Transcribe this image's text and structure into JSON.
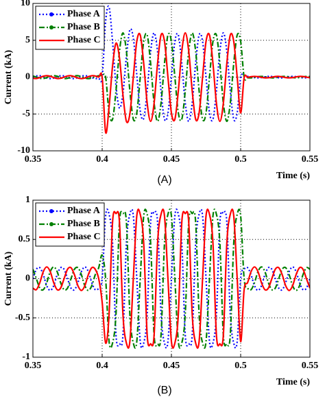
{
  "chart_data": [
    {
      "type": "line",
      "caption": "(A)",
      "xlabel": "Time (s)",
      "ylabel": "Current (kA)",
      "xlim": [
        0.35,
        0.55
      ],
      "ylim": [
        -10,
        10
      ],
      "xticks": [
        0.35,
        0.4,
        0.45,
        0.5,
        0.55
      ],
      "yticks": [
        -10,
        -5,
        0,
        5,
        10
      ],
      "grid": true,
      "legend": "upper left",
      "x": [
        0.35,
        0.3525,
        0.355,
        0.3575,
        0.36,
        0.3625,
        0.365,
        0.3675,
        0.37,
        0.3725,
        0.375,
        0.3775,
        0.38,
        0.3825,
        0.385,
        0.3875,
        0.39,
        0.3925,
        0.395,
        0.3975,
        0.4,
        0.4025,
        0.405,
        0.4075,
        0.41,
        0.4125,
        0.415,
        0.4175,
        0.42,
        0.4225,
        0.425,
        0.4275,
        0.43,
        0.4325,
        0.435,
        0.4375,
        0.44,
        0.4425,
        0.445,
        0.4475,
        0.45,
        0.4525,
        0.455,
        0.4575,
        0.46,
        0.4625,
        0.465,
        0.4675,
        0.47,
        0.4725,
        0.475,
        0.4775,
        0.48,
        0.4825,
        0.485,
        0.4875,
        0.49,
        0.4925,
        0.495,
        0.4975,
        0.5,
        0.5025,
        0.505,
        0.5075,
        0.51,
        0.5125,
        0.515,
        0.5175,
        0.52,
        0.5225,
        0.525,
        0.5275,
        0.53,
        0.5325,
        0.535,
        0.5375,
        0.54,
        0.5425,
        0.545,
        0.5475,
        0.55
      ],
      "series": [
        {
          "name": "Phase A",
          "color": "#0000ff",
          "style": "dotted",
          "values": [
            0,
            0.16,
            0.19,
            0.06,
            -0.12,
            -0.2,
            -0.12,
            0.06,
            0.19,
            0.16,
            0,
            -0.16,
            -0.19,
            -0.06,
            0.12,
            0.2,
            0.12,
            -0.06,
            -0.19,
            -0.16,
            0,
            7.6,
            9.5,
            4.8,
            -1.2,
            -4.2,
            -2.2,
            2.8,
            6.4,
            5.3,
            0.3,
            -4.6,
            -5.6,
            -1.8,
            3.5,
            6,
            3.5,
            -1.9,
            -5.7,
            -4.9,
            0,
            4.85,
            5.71,
            1.85,
            -3.53,
            -6,
            -3.53,
            1.85,
            5.71,
            4.85,
            0,
            -4.85,
            -5.71,
            -1.85,
            3.53,
            6,
            3.53,
            -1.85,
            -5.71,
            -4.85,
            0,
            0.08,
            0.1,
            0.03,
            -0.06,
            -0.1,
            -0.06,
            0.03,
            0.1,
            0.08,
            0,
            -0.08,
            -0.1,
            -0.03,
            0.06,
            0.1,
            0.06,
            -0.03,
            -0.1,
            -0.08,
            0
          ]
        },
        {
          "name": "Phase B",
          "color": "#008000",
          "style": "dashdot",
          "values": [
            0.16,
            0,
            -0.16,
            -0.19,
            -0.06,
            0.12,
            0.2,
            0.12,
            -0.06,
            -0.19,
            -0.16,
            0,
            0.16,
            0.19,
            0.06,
            -0.12,
            -0.2,
            -0.12,
            0.06,
            0.19,
            0.2,
            0,
            -4.85,
            -5.71,
            -1.85,
            3.53,
            6,
            3.53,
            -1.85,
            -5.71,
            -4.85,
            0,
            4.85,
            5.71,
            1.85,
            -3.53,
            -6,
            -3.53,
            1.85,
            5.71,
            4.85,
            0,
            -4.85,
            -5.71,
            -1.85,
            3.53,
            6,
            3.53,
            -1.85,
            -5.71,
            -4.85,
            0,
            4.85,
            5.71,
            1.85,
            -3.53,
            -6,
            -3.53,
            1.85,
            5.71,
            4.85,
            0,
            -0.08,
            -0.1,
            -0.03,
            0.06,
            0.1,
            0.06,
            -0.03,
            -0.1,
            -0.08,
            0,
            0.08,
            0.1,
            0.03,
            -0.06,
            -0.1,
            -0.06,
            0.03,
            0.1,
            0.08
          ]
        },
        {
          "name": "Phase C",
          "color": "#ff0000",
          "style": "solid",
          "values": [
            -0.16,
            -0.19,
            -0.06,
            0.12,
            0.2,
            0.12,
            -0.06,
            -0.19,
            -0.16,
            0,
            0.16,
            0.19,
            0.06,
            -0.12,
            -0.2,
            -0.12,
            0.06,
            0.19,
            0.16,
            0,
            0,
            -7.5,
            -4,
            1.5,
            4.6,
            2.6,
            -2.4,
            -6,
            -5,
            0,
            4.85,
            5.71,
            1.85,
            -3.53,
            -6,
            -3.53,
            1.85,
            5.71,
            4.85,
            0,
            -4.85,
            -5.71,
            -1.85,
            3.53,
            6,
            3.53,
            -1.85,
            -5.71,
            -4.85,
            0,
            4.85,
            5.71,
            1.85,
            -3.53,
            -6,
            -3.53,
            1.85,
            5.71,
            4.85,
            0,
            -4.85,
            -0.1,
            -0.03,
            0.06,
            0.1,
            0.06,
            -0.03,
            -0.1,
            -0.08,
            0,
            0.08,
            0.1,
            0.03,
            -0.06,
            -0.1,
            -0.06,
            0.03,
            0.1,
            0.08,
            0,
            -0.08
          ]
        }
      ]
    },
    {
      "type": "line",
      "caption": "(B)",
      "xlabel": "Time (s)",
      "ylabel": "Current (kA)",
      "xlim": [
        0.35,
        0.55
      ],
      "ylim": [
        -1,
        1
      ],
      "xticks": [
        0.35,
        0.4,
        0.45,
        0.5,
        0.55
      ],
      "yticks": [
        -1,
        -0.5,
        0,
        0.5,
        1
      ],
      "grid": true,
      "legend": "upper left",
      "x": [
        0.35,
        0.3525,
        0.355,
        0.3575,
        0.36,
        0.3625,
        0.365,
        0.3675,
        0.37,
        0.3725,
        0.375,
        0.3775,
        0.38,
        0.3825,
        0.385,
        0.3875,
        0.39,
        0.3925,
        0.395,
        0.3975,
        0.4,
        0.4025,
        0.405,
        0.4075,
        0.41,
        0.4125,
        0.415,
        0.4175,
        0.42,
        0.4225,
        0.425,
        0.4275,
        0.43,
        0.4325,
        0.435,
        0.4375,
        0.44,
        0.4425,
        0.445,
        0.4475,
        0.45,
        0.4525,
        0.455,
        0.4575,
        0.46,
        0.4625,
        0.465,
        0.4675,
        0.47,
        0.4725,
        0.475,
        0.4775,
        0.48,
        0.4825,
        0.485,
        0.4875,
        0.49,
        0.4925,
        0.495,
        0.4975,
        0.5,
        0.5025,
        0.505,
        0.5075,
        0.51,
        0.5125,
        0.515,
        0.5175,
        0.52,
        0.5225,
        0.525,
        0.5275,
        0.53,
        0.5325,
        0.535,
        0.5375,
        0.54,
        0.5425,
        0.545,
        0.5475,
        0.55
      ],
      "series": [
        {
          "name": "Phase A",
          "color": "#0000ff",
          "style": "dotted",
          "values": [
            0,
            0.12,
            0.14,
            0.05,
            -0.09,
            -0.15,
            -0.09,
            0.05,
            0.14,
            0.12,
            0,
            -0.12,
            -0.14,
            -0.05,
            0.09,
            0.15,
            0.09,
            -0.05,
            -0.14,
            -0.12,
            0,
            0.8,
            0.82,
            0.45,
            -0.72,
            -0.83,
            -0.72,
            0.45,
            0.82,
            0.8,
            0,
            -0.8,
            -0.82,
            -0.45,
            0.72,
            0.83,
            0.72,
            -0.45,
            -0.82,
            -0.8,
            0,
            0.8,
            0.82,
            0.45,
            -0.72,
            -0.83,
            -0.72,
            0.45,
            0.82,
            0.8,
            0,
            -0.8,
            -0.82,
            -0.45,
            0.72,
            0.83,
            0.72,
            -0.45,
            -0.82,
            -0.8,
            0,
            0.12,
            0.14,
            0.05,
            -0.09,
            -0.15,
            -0.09,
            0.05,
            0.14,
            0.12,
            0,
            -0.12,
            -0.14,
            -0.05,
            0.09,
            0.15,
            0.09,
            -0.05,
            -0.14,
            -0.12,
            0
          ]
        },
        {
          "name": "Phase B",
          "color": "#008000",
          "style": "dashdot",
          "values": [
            0.12,
            0,
            -0.12,
            -0.14,
            -0.05,
            0.09,
            0.15,
            0.09,
            -0.05,
            -0.14,
            -0.12,
            0,
            0.12,
            0.14,
            0.05,
            -0.09,
            -0.15,
            -0.09,
            0.05,
            0.14,
            0.3,
            0,
            -0.8,
            -0.82,
            -0.45,
            0.72,
            0.83,
            0.72,
            -0.45,
            -0.82,
            -0.8,
            0,
            0.8,
            0.82,
            0.45,
            -0.72,
            -0.83,
            -0.72,
            0.45,
            0.82,
            0.8,
            0,
            -0.8,
            -0.82,
            -0.45,
            0.72,
            0.83,
            0.72,
            -0.45,
            -0.82,
            -0.8,
            0,
            0.8,
            0.82,
            0.45,
            -0.72,
            -0.83,
            -0.72,
            0.45,
            0.82,
            0.8,
            0,
            -0.12,
            -0.14,
            -0.05,
            0.09,
            0.15,
            0.09,
            -0.05,
            -0.14,
            -0.12,
            0,
            0.12,
            0.14,
            0.05,
            -0.09,
            -0.15,
            -0.09,
            0.05,
            0.14,
            0.12
          ]
        },
        {
          "name": "Phase C",
          "color": "#ff0000",
          "style": "solid",
          "values": [
            -0.12,
            -0.14,
            -0.05,
            0.09,
            0.15,
            0.09,
            -0.05,
            -0.14,
            -0.12,
            0,
            0.12,
            0.14,
            0.05,
            -0.09,
            -0.15,
            -0.09,
            0.05,
            0.14,
            0.12,
            0,
            -0.3,
            -0.82,
            -0.45,
            0.72,
            0.83,
            0.72,
            -0.45,
            -0.82,
            -0.8,
            0,
            0.8,
            0.82,
            0.45,
            -0.72,
            -0.83,
            -0.72,
            0.45,
            0.82,
            0.8,
            0,
            -0.8,
            -0.82,
            -0.45,
            0.72,
            0.83,
            0.72,
            -0.45,
            -0.82,
            -0.8,
            0,
            0.8,
            0.82,
            0.45,
            -0.72,
            -0.83,
            -0.72,
            0.45,
            0.82,
            0.8,
            0,
            -0.8,
            -0.14,
            -0.05,
            0.09,
            0.15,
            0.09,
            -0.05,
            -0.14,
            -0.12,
            0,
            0.12,
            0.14,
            0.05,
            -0.09,
            -0.15,
            -0.09,
            0.05,
            0.14,
            0.12,
            0,
            -0.12
          ]
        }
      ]
    }
  ]
}
